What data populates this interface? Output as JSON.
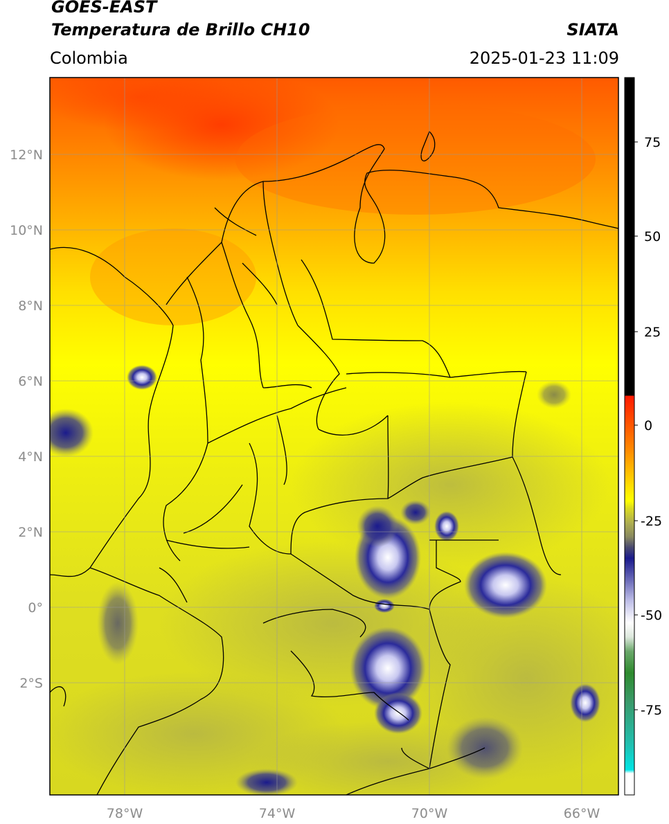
{
  "header": {
    "satellite": "GOES-EAST",
    "product": "Temperatura de Brillo CH10",
    "agency": "SIATA",
    "region": "Colombia",
    "datetime": "2025-01-23 11:09"
  },
  "map": {
    "lon_ticks": [
      "78°W",
      "74°W",
      "70°W",
      "66°W"
    ],
    "lat_ticks": [
      "12°N",
      "10°N",
      "8°N",
      "6°N",
      "4°N",
      "2°N",
      "0°",
      "2°S"
    ]
  },
  "colorbar": {
    "ticks": [
      "75",
      "50",
      "25",
      "0",
      "-25",
      "-50",
      "-75"
    ],
    "colors": {
      "black": "#000000",
      "red": "#ff1a00",
      "orange": "#ff8c00",
      "yellow": "#ffff00",
      "olive": "#b8b84a",
      "navy": "#1a1a8c",
      "white": "#ffffff",
      "green": "#2e8b2e",
      "cyan": "#00e5e5"
    }
  }
}
